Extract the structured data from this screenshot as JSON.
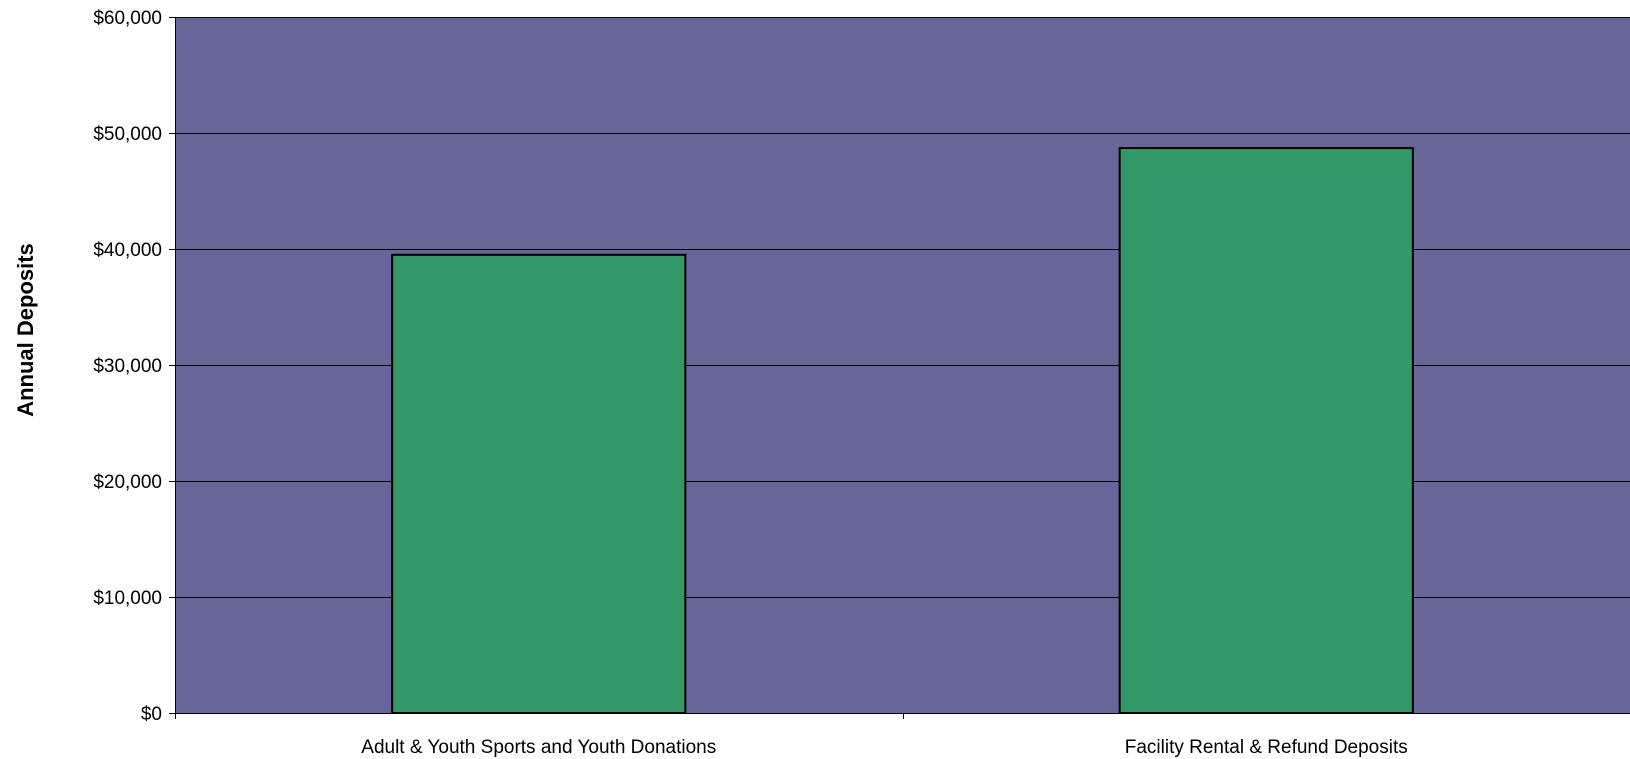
{
  "chart_data": {
    "type": "bar",
    "categories": [
      "Adult & Youth Sports and Youth Donations",
      "Facility Rental & Refund Deposits"
    ],
    "values": [
      39500,
      48700
    ],
    "title": "",
    "xlabel": "",
    "ylabel": "Annual Deposits",
    "ylim": [
      0,
      60000
    ],
    "yticks": [
      0,
      10000,
      20000,
      30000,
      40000,
      50000,
      60000
    ],
    "ytick_labels": [
      "$0",
      "$10,000",
      "$20,000",
      "$30,000",
      "$40,000",
      "$50,000",
      "$60,000"
    ],
    "grid": "horizontal",
    "colors": {
      "plot_background": "#666699",
      "bar_fill": "#339966",
      "bar_stroke": "#000000",
      "gridline": "#000000"
    }
  }
}
